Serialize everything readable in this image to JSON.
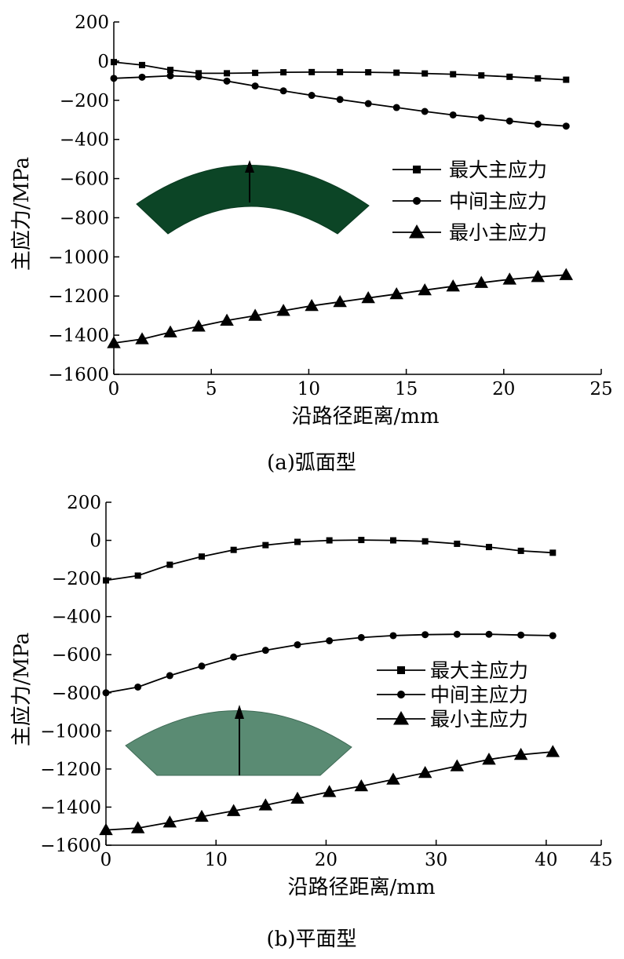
{
  "colors": {
    "axis": "#000000",
    "line": "#000000",
    "shape_a": "#0c4526",
    "shape_b": "#5a8b73"
  },
  "chart_data": [
    {
      "type": "line",
      "caption": "(a)弧面型",
      "xlabel": "沿路径距离/mm",
      "ylabel": "主应力/MPa",
      "xlim": [
        0,
        25
      ],
      "ylim": [
        -1600,
        200
      ],
      "xticks": [
        0,
        5,
        10,
        15,
        20,
        25
      ],
      "yticks": [
        200,
        0,
        -200,
        -400,
        -600,
        -800,
        -1000,
        -1200,
        -1400,
        -1600
      ],
      "legend_position": "right-middle",
      "grid": false,
      "series": [
        {
          "name": "最大主应力",
          "marker": "square",
          "x": [
            0,
            1.45,
            2.9,
            4.35,
            5.8,
            7.25,
            8.7,
            10.15,
            11.6,
            13.05,
            14.5,
            15.95,
            17.4,
            18.85,
            20.3,
            21.75,
            23.2
          ],
          "y": [
            -5,
            -20,
            -45,
            -62,
            -62,
            -60,
            -57,
            -56,
            -56,
            -57,
            -59,
            -63,
            -67,
            -73,
            -80,
            -88,
            -95
          ]
        },
        {
          "name": "中间主应力",
          "marker": "circle",
          "x": [
            0,
            1.45,
            2.9,
            4.35,
            5.8,
            7.25,
            8.7,
            10.15,
            11.6,
            13.05,
            14.5,
            15.95,
            17.4,
            18.85,
            20.3,
            21.75,
            23.2
          ],
          "y": [
            -88,
            -82,
            -75,
            -80,
            -102,
            -127,
            -152,
            -175,
            -196,
            -217,
            -237,
            -257,
            -275,
            -290,
            -306,
            -322,
            -332
          ]
        },
        {
          "name": "最小主应力",
          "marker": "triangle",
          "x": [
            0,
            1.45,
            2.9,
            4.35,
            5.8,
            7.25,
            8.7,
            10.15,
            11.6,
            13.05,
            14.5,
            15.95,
            17.4,
            18.85,
            20.3,
            21.75,
            23.2
          ],
          "y": [
            -1440,
            -1420,
            -1385,
            -1355,
            -1325,
            -1300,
            -1275,
            -1250,
            -1230,
            -1210,
            -1190,
            -1170,
            -1150,
            -1132,
            -1115,
            -1102,
            -1092
          ]
        }
      ]
    },
    {
      "type": "line",
      "caption": "(b)平面型",
      "xlabel": "沿路径距离/mm",
      "ylabel": "主应力/MPa",
      "xlim": [
        0,
        45
      ],
      "ylim": [
        -1600,
        200
      ],
      "xticks": [
        0,
        10,
        20,
        30,
        40,
        45
      ],
      "yticks": [
        200,
        0,
        -200,
        -400,
        -600,
        -800,
        -1000,
        -1200,
        -1400,
        -1600
      ],
      "legend_position": "right-middle",
      "grid": false,
      "series": [
        {
          "name": "最大主应力",
          "marker": "square",
          "x": [
            0,
            2.9,
            5.8,
            8.7,
            11.6,
            14.5,
            17.4,
            20.3,
            23.2,
            26.1,
            29,
            31.9,
            34.8,
            37.7,
            40.6
          ],
          "y": [
            -210,
            -185,
            -128,
            -85,
            -50,
            -25,
            -8,
            0,
            2,
            0,
            -5,
            -18,
            -35,
            -55,
            -65
          ]
        },
        {
          "name": "中间主应力",
          "marker": "circle",
          "x": [
            0,
            2.9,
            5.8,
            8.7,
            11.6,
            14.5,
            17.4,
            20.3,
            23.2,
            26.1,
            29,
            31.9,
            34.8,
            37.7,
            40.6
          ],
          "y": [
            -800,
            -770,
            -710,
            -660,
            -612,
            -577,
            -548,
            -527,
            -510,
            -500,
            -495,
            -493,
            -493,
            -497,
            -500
          ]
        },
        {
          "name": "最小主应力",
          "marker": "triangle",
          "x": [
            0,
            2.9,
            5.8,
            8.7,
            11.6,
            14.5,
            17.4,
            20.3,
            23.2,
            26.1,
            29,
            31.9,
            34.8,
            37.7,
            40.6
          ],
          "y": [
            -1520,
            -1510,
            -1480,
            -1450,
            -1420,
            -1390,
            -1355,
            -1320,
            -1290,
            -1255,
            -1220,
            -1185,
            -1150,
            -1125,
            -1110
          ]
        }
      ]
    }
  ]
}
